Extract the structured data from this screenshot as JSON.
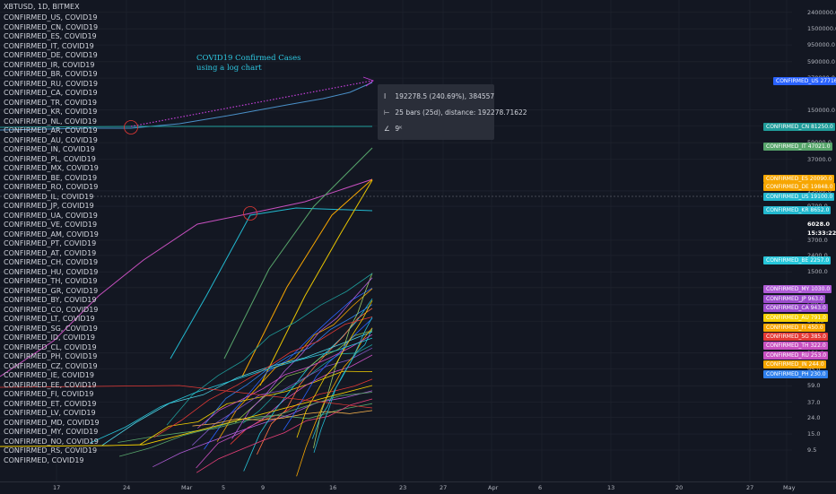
{
  "header": {
    "symbol": "XBTUSD, 1D, BITMEX"
  },
  "legend": [
    "CONFIRMED_US, COVID19",
    "CONFIRMED_CN, COVID19",
    "CONFIRMED_ES, COVID19",
    "CONFIRMED_IT, COVID19",
    "CONFIRMED_DE, COVID19",
    "CONFIRMED_IR, COVID19",
    "CONFIRMED_BR, COVID19",
    "CONFIRMED_RU, COVID19",
    "CONFIRMED_CA, COVID19",
    "CONFIRMED_TR, COVID19",
    "CONFIRMED_KR, COVID19",
    "CONFIRMED_NL, COVID19",
    "CONFIRMED_AR, COVID19",
    "CONFIRMED_AU, COVID19",
    "CONFIRMED_IN, COVID19",
    "CONFIRMED_PL, COVID19",
    "CONFIRMED_MX, COVID19",
    "CONFIRMED_BE, COVID19",
    "CONFIRMED_RO, COVID19",
    "CONFIRMED_IL, COVID19",
    "CONFIRMED_JP, COVID19",
    "CONFIRMED_UA, COVID19",
    "CONFIRMED_VE, COVID19",
    "CONFIRMED_AM, COVID19",
    "CONFIRMED_PT, COVID19",
    "CONFIRMED_AT, COVID19",
    "CONFIRMED_CH, COVID19",
    "CONFIRMED_HU, COVID19",
    "CONFIRMED_TH, COVID19",
    "CONFIRMED_GR, COVID19",
    "CONFIRMED_BY, COVID19",
    "CONFIRMED_CO, COVID19",
    "CONFIRMED_LT, COVID19",
    "CONFIRMED_SG, COVID19",
    "CONFIRMED_ID, COVID19",
    "CONFIRMED_CL, COVID19",
    "CONFIRMED_PH, COVID19",
    "CONFIRMED_CZ, COVID19",
    "CONFIRMED_IE, COVID19",
    "CONFIRMED_EE, COVID19",
    "CONFIRMED_FI, COVID19",
    "CONFIRMED_ET, COVID19",
    "CONFIRMED_LV, COVID19",
    "CONFIRMED_MD, COVID19",
    "CONFIRMED_MY, COVID19",
    "CONFIRMED_NO, COVID19",
    "CONFIRMED_RS, COVID19",
    "CONFIRMED, COVID19"
  ],
  "annotation": {
    "line1": "COVID19 Confirmed Cases",
    "line2": "using a log chart"
  },
  "tooltip": {
    "price_range": "192278.5 (240.69%), 384557",
    "bars_range": "25 bars (25d), distance: 192278.71622",
    "volume": "9ᴷ"
  },
  "price_label": {
    "value": "6028.0",
    "countdown": "15:33:22"
  },
  "colors": {
    "background": "#131722",
    "grid": "#1e222d",
    "text": "#d1d4dc",
    "annotation": "#2ec7e0",
    "measure": "#c33fd8"
  },
  "chart_data": {
    "type": "line",
    "scale": "log",
    "title": "",
    "xlabel": "",
    "ylabel": "",
    "x_ticks": [
      "17",
      "24",
      "Mar",
      "5",
      "9",
      "16",
      "23",
      "27",
      "Apr",
      "6",
      "13",
      "20",
      "27",
      "May"
    ],
    "y_ticks": [
      "2400000.0",
      "1500000.0",
      "950000.0",
      "590000.0",
      "370000.0",
      "150000.0",
      "95000.0",
      "59000.0",
      "37000.0",
      "15000.0",
      "9700.0",
      "3700.0",
      "2400.0",
      "1500.0",
      "960.0",
      "590.0",
      "370.0",
      "150.0",
      "95.0",
      "59.0",
      "37.0",
      "24.0",
      "15.0",
      "9.5"
    ],
    "ylim": [
      6,
      3000000
    ],
    "grid": true,
    "last_values": [
      {
        "name": "CONFIRMED_US",
        "value": "277166.0",
        "color": "#2962ff"
      },
      {
        "name": "CONFIRMED_CN",
        "value": "81250.0",
        "color": "#1f9c9a"
      },
      {
        "name": "CONFIRMED_IT",
        "value": "47021.0",
        "color": "#57a56b"
      },
      {
        "name": "CONFIRMED_ES",
        "value": "20090.0",
        "color": "#f7a600"
      },
      {
        "name": "CONFIRMED_DE",
        "value": "19848.0",
        "color": "#f7a600"
      },
      {
        "name": "CONFIRMED_US",
        "value": "19100.0",
        "color": "#22b8cf"
      },
      {
        "name": "CONFIRMED_KR",
        "value": "8652.0",
        "color": "#22b8cf"
      },
      {
        "name": "CONFIRMED_BE",
        "value": "2257.0",
        "color": "#26c6da"
      },
      {
        "name": "CONFIRMED_MY",
        "value": "1030.0",
        "color": "#b05cd6"
      },
      {
        "name": "CONFIRMED_JP",
        "value": "963.0",
        "color": "#9c4dcc"
      },
      {
        "name": "CONFIRMED_CA",
        "value": "943.0",
        "color": "#9c4dcc"
      },
      {
        "name": "CONFIRMED_AU",
        "value": "791.0",
        "color": "#f5d000"
      },
      {
        "name": "CONFIRMED_FI",
        "value": "450.0",
        "color": "#f7a600"
      },
      {
        "name": "CONFIRMED_SG",
        "value": "385.0",
        "color": "#e53935"
      },
      {
        "name": "CONFIRMED_TH",
        "value": "322.0",
        "color": "#c850c0"
      },
      {
        "name": "CONFIRMED_RU",
        "value": "253.0",
        "color": "#c850c0"
      },
      {
        "name": "CONFIRMED_IN",
        "value": "244.0",
        "color": "#f7a600"
      },
      {
        "name": "CONFIRMED_PH",
        "value": "230.0",
        "color": "#2f80ed"
      }
    ]
  }
}
